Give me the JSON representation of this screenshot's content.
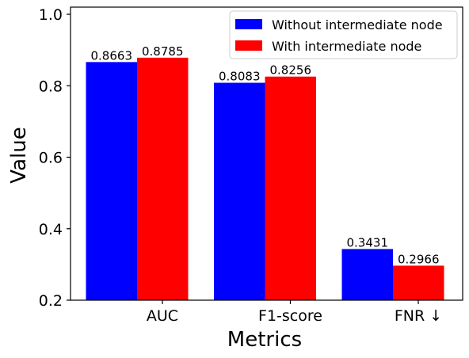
{
  "chart_data": {
    "type": "bar",
    "categories": [
      "AUC",
      "F1-score",
      "FNR ↓"
    ],
    "series": [
      {
        "name": "Without intermediate node",
        "color": "#0000ff",
        "values": [
          0.8663,
          0.8083,
          0.3431
        ],
        "labels": [
          "0.8663",
          "0.8083",
          "0.3431"
        ]
      },
      {
        "name": "With intermediate node",
        "color": "#ff0000",
        "values": [
          0.8785,
          0.8256,
          0.2966
        ],
        "labels": [
          "0.8785",
          "0.8256",
          "0.2966"
        ]
      }
    ],
    "xlabel": "Metrics",
    "ylabel": "Value",
    "ylim": [
      0.2,
      1.02
    ],
    "yticks": [
      0.2,
      0.4,
      0.6,
      0.8,
      1.0
    ],
    "ytick_labels": [
      "0.2",
      "0.4",
      "0.6",
      "0.8",
      "1.0"
    ],
    "grid": false,
    "legend_position": "top-right"
  }
}
